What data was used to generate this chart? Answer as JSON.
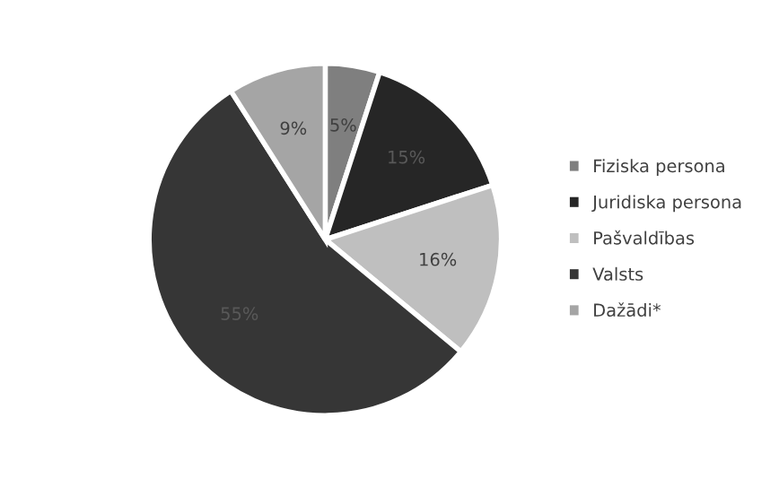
{
  "chart_data": {
    "type": "pie",
    "categories": [
      "Fiziska persona",
      "Juridiska persona",
      "Pašvaldības",
      "Valsts",
      "Dažādi*"
    ],
    "values": [
      5,
      15,
      16,
      55,
      9
    ],
    "colors": [
      "#7f7f7f",
      "#262626",
      "#bfbfbf",
      "#363636",
      "#a5a5a5"
    ],
    "value_labels": [
      "5%",
      "15%",
      "16%",
      "55%",
      "9%"
    ],
    "legend": "right"
  }
}
